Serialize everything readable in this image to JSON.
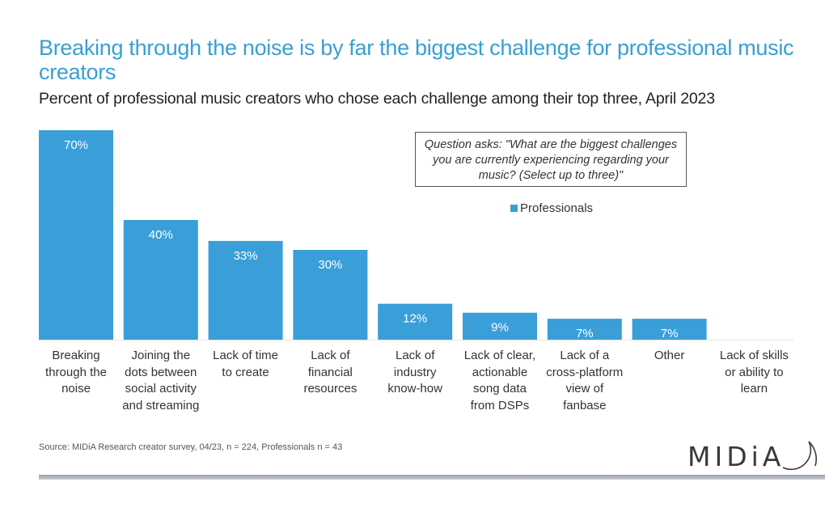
{
  "header": {
    "title": "Breaking through the noise is by far the biggest challenge for professional music creators",
    "subtitle": "Percent of professional music creators who chose each challenge among their top three, April 2023"
  },
  "question_box": {
    "text": "Question asks: \"What are the biggest challenges you are currently experiencing regarding your music? (Select up to three)\""
  },
  "footer": {
    "source": "Source: MIDiA Research creator survey, 04/23, n = 224, Professionals n = 43",
    "logo_text": "MIDiA"
  },
  "colors": {
    "title": "#3a9fd3",
    "bar": "#3a9fd8",
    "bar_label": "#ffffff",
    "text": "#333333"
  },
  "chart_data": {
    "type": "bar",
    "title": "Breaking through the noise is by far the biggest challenge for professional music creators",
    "subtitle": "Percent of professional music creators who chose each challenge among their top three, April 2023",
    "xlabel": "",
    "ylabel": "",
    "ylim": [
      0,
      70
    ],
    "grid": false,
    "legend": {
      "position": "top-right",
      "entries": [
        "Professionals"
      ]
    },
    "categories": [
      "Breaking through the noise",
      "Joining the dots between social activity and streaming",
      "Lack of time to create",
      "Lack of financial resources",
      "Lack of industry know-how",
      "Lack of clear, actionable song data from DSPs",
      "Lack of a cross-platform view of fanbase",
      "Other",
      "Lack of skills or ability to learn"
    ],
    "category_lines": [
      [
        "Breaking",
        "through the",
        "noise"
      ],
      [
        "Joining the",
        "dots between",
        "social activity",
        "and streaming"
      ],
      [
        "Lack of time",
        "to create"
      ],
      [
        "Lack of",
        "financial",
        "resources"
      ],
      [
        "Lack of",
        "industry",
        "know-how"
      ],
      [
        "Lack of clear,",
        "actionable",
        "song data",
        "from DSPs"
      ],
      [
        "Lack of a",
        "cross-platform",
        "view of",
        "fanbase"
      ],
      [
        "Other"
      ],
      [
        "Lack of skills",
        "or ability to",
        "learn"
      ]
    ],
    "series": [
      {
        "name": "Professionals",
        "values": [
          70,
          40,
          33,
          30,
          12,
          9,
          7,
          7,
          0
        ],
        "labels": [
          "70%",
          "40%",
          "33%",
          "30%",
          "12%",
          "9%",
          "7%",
          "7%",
          ""
        ]
      }
    ],
    "annotations": [
      "Question asks: \"What are the biggest challenges you are currently experiencing regarding your music? (Select up to three)\""
    ]
  }
}
